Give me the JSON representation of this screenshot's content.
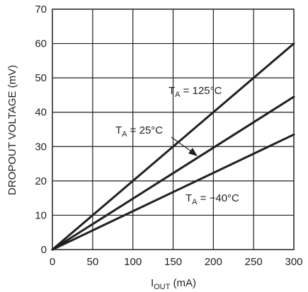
{
  "chart_data": {
    "type": "line",
    "title": "",
    "xlabel": {
      "main": "I",
      "sub": "OUT",
      "unit": " (mA)"
    },
    "ylabel": "DROPOUT VOLTAGE (mV)",
    "xlim": [
      0,
      300
    ],
    "ylim": [
      0,
      70
    ],
    "x_ticks": [
      "0",
      "50",
      "100",
      "150",
      "200",
      "250",
      "300"
    ],
    "y_ticks": [
      "0",
      "10",
      "20",
      "30",
      "40",
      "50",
      "60",
      "70"
    ],
    "grid": true,
    "series": [
      {
        "name": "T_A = 125°C",
        "x": [
          0,
          300
        ],
        "y": [
          0,
          60
        ]
      },
      {
        "name": "T_A = 25°C",
        "x": [
          0,
          300
        ],
        "y": [
          0,
          44.5
        ]
      },
      {
        "name": "T_A = −40°C",
        "x": [
          0,
          300
        ],
        "y": [
          0,
          33.5
        ]
      }
    ],
    "annotations": [
      {
        "main": "T",
        "sub": "A",
        "rest": " = 125°C"
      },
      {
        "main": "T",
        "sub": "A",
        "rest": " = 25°C"
      },
      {
        "main": "T",
        "sub": "A",
        "rest": " = −40°C"
      }
    ],
    "colors": {
      "line": "#231f20",
      "grid": "#231f20"
    }
  }
}
